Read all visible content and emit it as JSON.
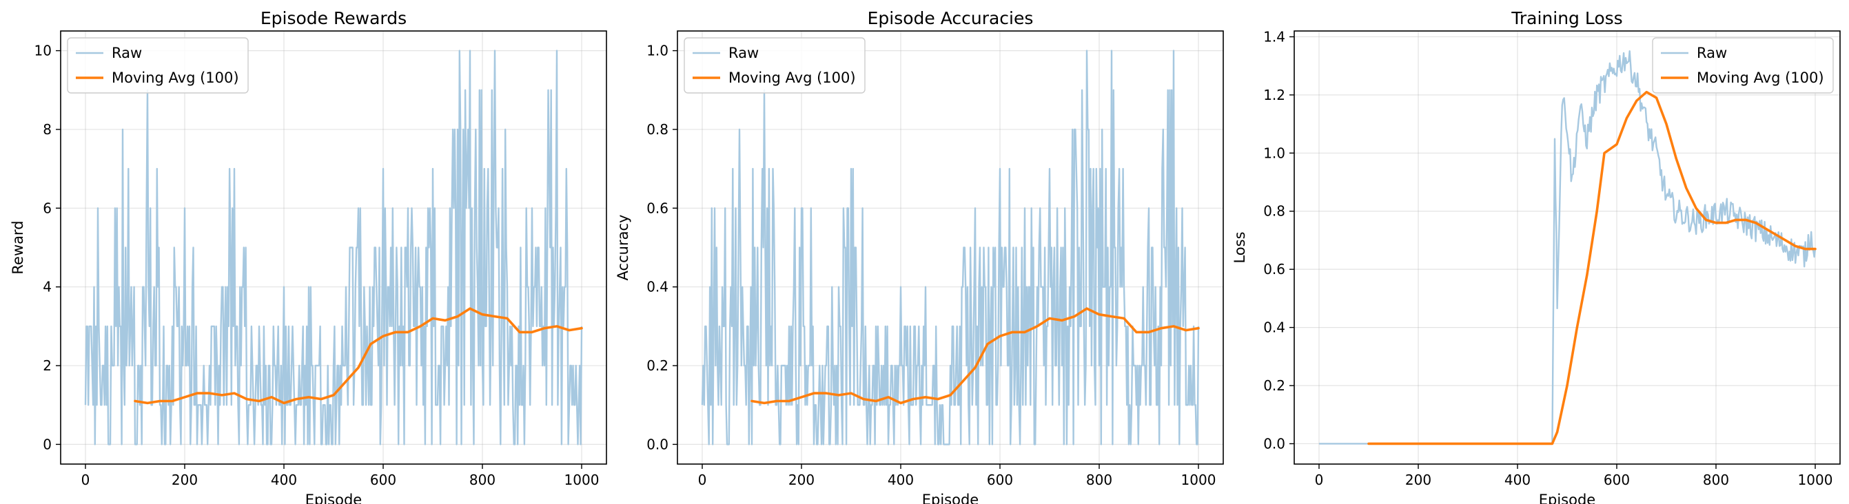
{
  "chart_data": [
    {
      "type": "line",
      "title": "Episode Rewards",
      "xlabel": "Episode",
      "ylabel": "Reward",
      "xlim": [
        -50,
        1050
      ],
      "ylim": [
        -0.5,
        10.5
      ],
      "xticks": [
        0,
        200,
        400,
        600,
        800,
        1000
      ],
      "yticks": [
        0,
        2,
        4,
        6,
        8,
        10
      ],
      "xtick_labels": [
        "0",
        "200",
        "400",
        "600",
        "800",
        "1000"
      ],
      "ytick_labels": [
        "0",
        "2",
        "4",
        "6",
        "8",
        "10"
      ],
      "grid": true,
      "legend_position": "top-left",
      "legend": [
        {
          "label": "Raw",
          "color": "#a6c8e0"
        },
        {
          "label": "Moving Avg (100)",
          "color": "#ff7f0e"
        }
      ],
      "series": [
        {
          "name": "Raw",
          "color": "#a6c8e0",
          "x": [
            0,
            25,
            50,
            75,
            100,
            125,
            150,
            175,
            200,
            225,
            250,
            275,
            300,
            325,
            350,
            375,
            400,
            425,
            450,
            475,
            500,
            525,
            550,
            575,
            600,
            625,
            650,
            675,
            700,
            725,
            750,
            775,
            800,
            825,
            850,
            875,
            900,
            925,
            950,
            975,
            1000
          ],
          "y": [
            1,
            6,
            0,
            8,
            0,
            9,
            1,
            3,
            6,
            0,
            2,
            4,
            7,
            1,
            3,
            0,
            4,
            1,
            4,
            0,
            2,
            4,
            6,
            1,
            7,
            3,
            6,
            4,
            7,
            2,
            8,
            10,
            2,
            10,
            4,
            1,
            6,
            2,
            10,
            1,
            3
          ]
        },
        {
          "name": "Moving Avg (100)",
          "color": "#ff7f0e",
          "x": [
            100,
            125,
            150,
            175,
            200,
            225,
            250,
            275,
            300,
            325,
            350,
            375,
            400,
            425,
            450,
            475,
            500,
            525,
            550,
            575,
            600,
            625,
            650,
            675,
            700,
            725,
            750,
            775,
            800,
            825,
            850,
            875,
            900,
            925,
            950,
            975,
            1000
          ],
          "y": [
            1.1,
            1.05,
            1.1,
            1.1,
            1.2,
            1.3,
            1.3,
            1.25,
            1.3,
            1.15,
            1.1,
            1.2,
            1.05,
            1.15,
            1.2,
            1.15,
            1.25,
            1.6,
            1.95,
            2.55,
            2.75,
            2.85,
            2.85,
            3.0,
            3.2,
            3.15,
            3.25,
            3.45,
            3.3,
            3.25,
            3.2,
            2.85,
            2.85,
            2.95,
            3.0,
            2.9,
            2.95
          ]
        }
      ]
    },
    {
      "type": "line",
      "title": "Episode Accuracies",
      "xlabel": "Episode",
      "ylabel": "Accuracy",
      "xlim": [
        -50,
        1050
      ],
      "ylim": [
        -0.05,
        1.05
      ],
      "xticks": [
        0,
        200,
        400,
        600,
        800,
        1000
      ],
      "yticks": [
        0.0,
        0.2,
        0.4,
        0.6,
        0.8,
        1.0
      ],
      "xtick_labels": [
        "0",
        "200",
        "400",
        "600",
        "800",
        "1000"
      ],
      "ytick_labels": [
        "0.0",
        "0.2",
        "0.4",
        "0.6",
        "0.8",
        "1.0"
      ],
      "grid": true,
      "legend_position": "top-left",
      "legend": [
        {
          "label": "Raw",
          "color": "#a6c8e0"
        },
        {
          "label": "Moving Avg (100)",
          "color": "#ff7f0e"
        }
      ],
      "series": [
        {
          "name": "Raw",
          "color": "#a6c8e0",
          "x": [
            0,
            25,
            50,
            75,
            100,
            125,
            150,
            175,
            200,
            225,
            250,
            275,
            300,
            325,
            350,
            375,
            400,
            425,
            450,
            475,
            500,
            525,
            550,
            575,
            600,
            625,
            650,
            675,
            700,
            725,
            750,
            775,
            800,
            825,
            850,
            875,
            900,
            925,
            950,
            975,
            1000
          ],
          "y": [
            0.1,
            0.6,
            0.0,
            0.8,
            0.0,
            0.9,
            0.1,
            0.3,
            0.6,
            0.0,
            0.2,
            0.4,
            0.7,
            0.1,
            0.3,
            0.0,
            0.4,
            0.1,
            0.4,
            0.0,
            0.2,
            0.4,
            0.6,
            0.1,
            0.7,
            0.3,
            0.6,
            0.4,
            0.7,
            0.2,
            0.8,
            1.0,
            0.2,
            1.0,
            0.4,
            0.1,
            0.6,
            0.2,
            1.0,
            0.1,
            0.3
          ]
        },
        {
          "name": "Moving Avg (100)",
          "color": "#ff7f0e",
          "x": [
            100,
            125,
            150,
            175,
            200,
            225,
            250,
            275,
            300,
            325,
            350,
            375,
            400,
            425,
            450,
            475,
            500,
            525,
            550,
            575,
            600,
            625,
            650,
            675,
            700,
            725,
            750,
            775,
            800,
            825,
            850,
            875,
            900,
            925,
            950,
            975,
            1000
          ],
          "y": [
            0.11,
            0.105,
            0.11,
            0.11,
            0.12,
            0.13,
            0.13,
            0.125,
            0.13,
            0.115,
            0.11,
            0.12,
            0.105,
            0.115,
            0.12,
            0.115,
            0.125,
            0.16,
            0.195,
            0.255,
            0.275,
            0.285,
            0.285,
            0.3,
            0.32,
            0.315,
            0.325,
            0.345,
            0.33,
            0.325,
            0.32,
            0.285,
            0.285,
            0.295,
            0.3,
            0.29,
            0.295
          ]
        }
      ]
    },
    {
      "type": "line",
      "title": "Training Loss",
      "xlabel": "Episode",
      "ylabel": "Loss",
      "xlim": [
        -50,
        1050
      ],
      "ylim": [
        -0.07,
        1.42
      ],
      "xticks": [
        0,
        200,
        400,
        600,
        800,
        1000
      ],
      "yticks": [
        0.0,
        0.2,
        0.4,
        0.6,
        0.8,
        1.0,
        1.2,
        1.4
      ],
      "xtick_labels": [
        "0",
        "200",
        "400",
        "600",
        "800",
        "1000"
      ],
      "ytick_labels": [
        "0.0",
        "0.2",
        "0.4",
        "0.6",
        "0.8",
        "1.0",
        "1.2",
        "1.4"
      ],
      "grid": true,
      "legend_position": "top-right",
      "legend": [
        {
          "label": "Raw",
          "color": "#a6c8e0"
        },
        {
          "label": "Moving Avg (100)",
          "color": "#ff7f0e"
        }
      ],
      "series": [
        {
          "name": "Raw",
          "color": "#a6c8e0",
          "x": [
            0,
            100,
            200,
            300,
            400,
            470,
            475,
            480,
            490,
            500,
            510,
            525,
            540,
            560,
            580,
            600,
            620,
            640,
            660,
            680,
            700,
            720,
            740,
            760,
            780,
            800,
            820,
            840,
            860,
            880,
            900,
            920,
            940,
            960,
            980,
            990,
            1000
          ],
          "y": [
            0.0,
            0.0,
            0.0,
            0.0,
            0.0,
            0.0,
            1.07,
            0.5,
            1.2,
            1.1,
            0.9,
            1.15,
            1.05,
            1.2,
            1.25,
            1.3,
            1.33,
            1.25,
            1.1,
            1.0,
            0.85,
            0.8,
            0.78,
            0.76,
            0.78,
            0.79,
            0.8,
            0.78,
            0.76,
            0.74,
            0.72,
            0.7,
            0.68,
            0.66,
            0.65,
            0.72,
            0.67
          ]
        },
        {
          "name": "Moving Avg (100)",
          "color": "#ff7f0e",
          "x": [
            100,
            200,
            300,
            400,
            470,
            480,
            500,
            520,
            540,
            560,
            575,
            600,
            620,
            640,
            660,
            680,
            700,
            720,
            740,
            760,
            780,
            800,
            820,
            840,
            860,
            880,
            900,
            920,
            940,
            960,
            980,
            1000
          ],
          "y": [
            0.0,
            0.0,
            0.0,
            0.0,
            0.0,
            0.04,
            0.2,
            0.4,
            0.58,
            0.8,
            1.0,
            1.03,
            1.12,
            1.18,
            1.21,
            1.19,
            1.1,
            0.98,
            0.88,
            0.81,
            0.77,
            0.76,
            0.76,
            0.77,
            0.77,
            0.76,
            0.74,
            0.72,
            0.7,
            0.68,
            0.67,
            0.67
          ]
        }
      ]
    }
  ]
}
